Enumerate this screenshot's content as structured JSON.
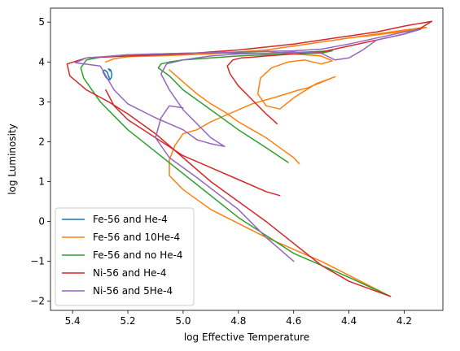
{
  "chart_data": {
    "type": "line",
    "title": "",
    "xlabel": "log Effective Temperature",
    "ylabel": "log Luminosity",
    "xlim": [
      5.48,
      4.06
    ],
    "ylim": [
      -2.23,
      5.35
    ],
    "x_inverted": true,
    "xticks": [
      5.4,
      5.2,
      5.0,
      4.8,
      4.6,
      4.4,
      4.2
    ],
    "xtick_labels": [
      "5.4",
      "5.2",
      "5.0",
      "4.8",
      "4.6",
      "4.4",
      "4.2"
    ],
    "yticks": [
      -2,
      -1,
      0,
      1,
      2,
      3,
      4,
      5
    ],
    "ytick_labels": [
      "−2",
      "−1",
      "0",
      "1",
      "2",
      "3",
      "4",
      "5"
    ],
    "grid": false,
    "legend_position": "bottom-left",
    "series": [
      {
        "name": "Fe-56 and He-4",
        "color": "#1f77b4",
        "x": [
          5.265,
          5.27,
          5.275,
          5.285,
          5.29,
          5.28,
          5.27,
          5.26,
          5.258,
          5.262,
          5.27,
          5.265
        ],
        "y": [
          3.55,
          3.65,
          3.75,
          3.8,
          3.75,
          3.62,
          3.55,
          3.6,
          3.7,
          3.8,
          3.83,
          3.78
        ]
      },
      {
        "name": "Fe-56 and 10He-4",
        "color": "#ff7f0e",
        "x": [
          4.25,
          4.5,
          4.7,
          4.9,
          5.0,
          5.05,
          5.05,
          5.03,
          5.0,
          4.95,
          4.9,
          4.85,
          4.75,
          4.65,
          4.58,
          4.55,
          4.45,
          4.52,
          4.6,
          4.65,
          4.7,
          4.73,
          4.72,
          4.68,
          4.62,
          4.56,
          4.52,
          4.5,
          4.46,
          4.5,
          4.6,
          4.68,
          4.7,
          4.65,
          4.6,
          4.5,
          4.4,
          4.3,
          4.22,
          4.15,
          4.12,
          4.2,
          4.3,
          4.4,
          4.55,
          4.7,
          4.9,
          5.1,
          5.2,
          5.25,
          5.28
        ],
        "y": [
          -1.88,
          -1.0,
          -0.4,
          0.3,
          0.8,
          1.15,
          1.55,
          1.9,
          2.2,
          2.3,
          2.5,
          2.65,
          2.95,
          3.15,
          3.3,
          3.35,
          3.63,
          3.45,
          3.1,
          2.82,
          2.9,
          3.2,
          3.6,
          3.85,
          4.0,
          4.05,
          3.98,
          3.95,
          4.03,
          4.15,
          4.2,
          4.25,
          4.3,
          4.35,
          4.4,
          4.5,
          4.6,
          4.68,
          4.75,
          4.82,
          4.87,
          4.8,
          4.7,
          4.6,
          4.45,
          4.3,
          4.2,
          4.15,
          4.13,
          4.08,
          4.0
        ],
        "x2": [
          5.05,
          5.0,
          4.95,
          4.9,
          4.85,
          4.8,
          4.75,
          4.7,
          4.65,
          4.6,
          4.58
        ],
        "y2": [
          3.8,
          3.5,
          3.2,
          2.95,
          2.75,
          2.5,
          2.3,
          2.1,
          1.85,
          1.6,
          1.45
        ]
      },
      {
        "name": "Fe-56 and no He-4",
        "color": "#2ca02c",
        "x": [
          4.62,
          4.7,
          4.8,
          4.9,
          5.0,
          5.05,
          5.09,
          5.08,
          5.05,
          5.0,
          4.9,
          4.8,
          4.7,
          4.6,
          4.5,
          4.46,
          4.55,
          4.7,
          4.9,
          5.1,
          5.2,
          5.3,
          5.35,
          5.37,
          5.36,
          5.3,
          5.2,
          5.0,
          4.8,
          4.6,
          4.4,
          4.25
        ],
        "y": [
          1.48,
          1.85,
          2.3,
          2.8,
          3.3,
          3.65,
          3.85,
          3.95,
          4.0,
          4.05,
          4.1,
          4.15,
          4.18,
          4.2,
          4.22,
          4.28,
          4.25,
          4.22,
          4.23,
          4.2,
          4.18,
          4.12,
          4.05,
          3.85,
          3.6,
          3.0,
          2.3,
          1.2,
          0.1,
          -0.8,
          -1.4,
          -1.88
        ]
      },
      {
        "name": "Ni-56 and He-4",
        "color": "#d62728",
        "x": [
          4.66,
          4.7,
          4.75,
          4.8,
          4.83,
          4.84,
          4.82,
          4.79,
          4.75,
          4.7,
          4.6,
          4.5,
          4.4,
          4.3,
          4.2,
          4.14,
          4.1,
          4.2,
          4.3,
          4.45,
          4.6,
          4.8,
          5.0,
          5.2,
          5.35,
          5.42,
          5.41,
          5.35,
          5.27,
          5.2,
          5.1,
          5.0,
          4.9,
          4.8,
          4.7,
          4.6,
          4.5,
          4.4,
          4.25
        ],
        "y": [
          2.45,
          2.7,
          3.05,
          3.4,
          3.7,
          3.9,
          4.05,
          4.1,
          4.12,
          4.15,
          4.2,
          4.25,
          4.4,
          4.55,
          4.7,
          4.85,
          5.02,
          4.9,
          4.75,
          4.6,
          4.45,
          4.3,
          4.2,
          4.15,
          4.1,
          3.95,
          3.65,
          3.3,
          3.0,
          2.7,
          2.2,
          1.6,
          1.0,
          0.5,
          0.0,
          -0.55,
          -1.1,
          -1.5,
          -1.88
        ],
        "x2": [
          5.28,
          5.25,
          5.2,
          5.1,
          5.0,
          4.9,
          4.8,
          4.7,
          4.65
        ],
        "y2": [
          3.3,
          2.9,
          2.55,
          2.1,
          1.65,
          1.35,
          1.05,
          0.75,
          0.65
        ]
      },
      {
        "name": "Ni-56 and 5He-4",
        "color": "#9467bd",
        "x": [
          4.85,
          4.9,
          4.95,
          5.0,
          5.05,
          5.08,
          5.06,
          5.0,
          4.95,
          4.9,
          4.8,
          4.7,
          4.6,
          4.5,
          4.45,
          4.4,
          4.35,
          4.3,
          4.2,
          4.14,
          4.2,
          4.3,
          4.4,
          4.5,
          4.6,
          4.8,
          5.0,
          5.2,
          5.35,
          5.39,
          5.3,
          5.25,
          5.2,
          5.1,
          5.0,
          4.95,
          4.9,
          4.85
        ],
        "y": [
          1.88,
          2.1,
          2.45,
          2.8,
          3.3,
          3.7,
          3.95,
          4.05,
          4.1,
          4.15,
          4.2,
          4.22,
          4.25,
          4.22,
          4.05,
          4.1,
          4.3,
          4.55,
          4.7,
          4.82,
          4.75,
          4.6,
          4.45,
          4.32,
          4.28,
          4.25,
          4.22,
          4.18,
          4.1,
          3.98,
          3.9,
          3.3,
          2.95,
          2.6,
          2.3,
          2.05,
          1.95,
          1.88
        ],
        "x2": [
          5.0,
          5.05,
          5.08,
          5.1,
          5.05,
          4.95,
          4.8,
          4.7,
          4.6
        ],
        "y2": [
          2.85,
          2.9,
          2.6,
          2.1,
          1.6,
          1.1,
          0.3,
          -0.4,
          -1.0
        ]
      }
    ]
  }
}
